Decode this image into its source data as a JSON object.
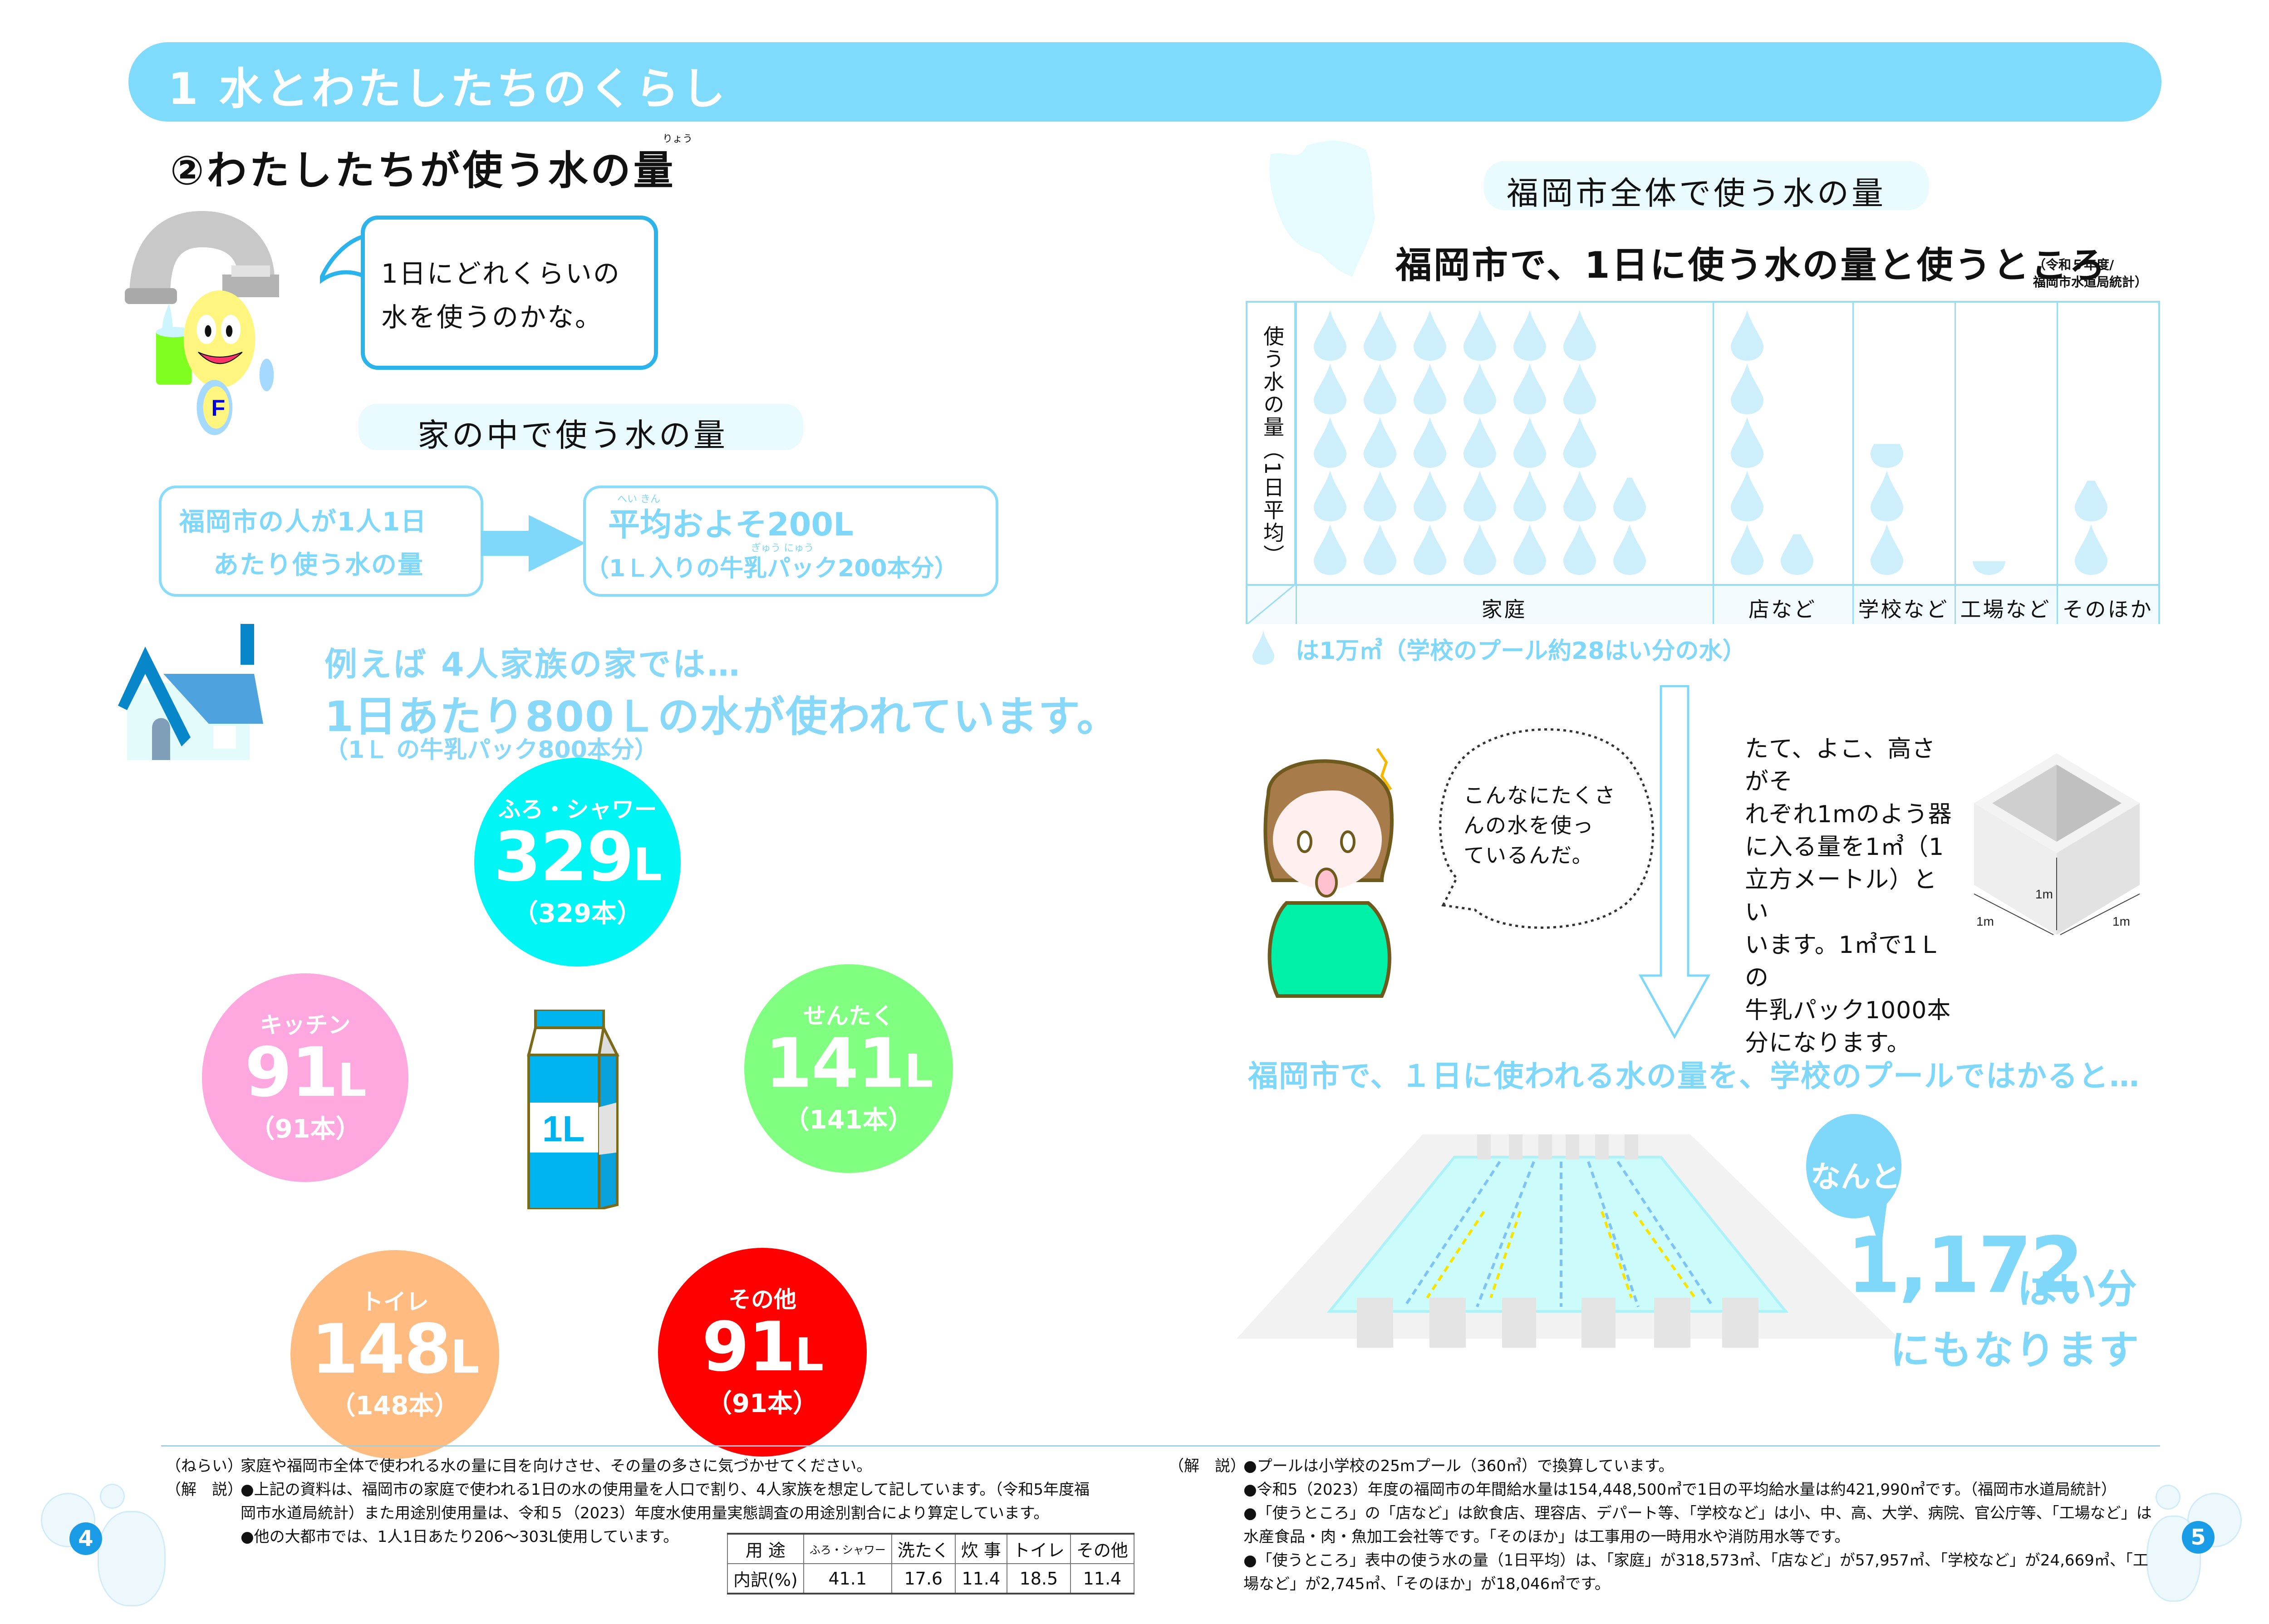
{
  "header": {
    "title": "1 水とわたしたちのくらし"
  },
  "left_page": {
    "section_title": "②わたしたちが使う水の量",
    "section_title_ruby": "りょう",
    "mascot_speech": "1日にどれくらいの\n水を使うのかな。",
    "subheading": "家の中で使う水の量",
    "per_person_box": {
      "line1": "福岡市の人が1人1日",
      "line2": "あたり使う水の量"
    },
    "average_box": {
      "line1": "平均およそ200L",
      "line1_ruby": "へい きん",
      "line2": "（1Ｌ入りの牛乳パック200本分）",
      "line2_ruby": "ぎゅう にゅう"
    },
    "example": {
      "line1": "例えば 4人家族の家では…",
      "line2": "1日あたり800Ｌの水が使われています。",
      "line3": "（1Ｌ の牛乳パック800本分）"
    },
    "carton_label": "1L",
    "usage_circles": [
      {
        "label": "ふろ・シャワー",
        "value": "329",
        "unit": "L",
        "packs": "（329本）",
        "color": "#00f5f5"
      },
      {
        "label": "キッチン",
        "value": "91",
        "unit": "L",
        "packs": "（91本）",
        "color": "#ffa8e0"
      },
      {
        "label": "せんたく",
        "value": "141",
        "unit": "L",
        "packs": "（141本）",
        "color": "#80ff80"
      },
      {
        "label": "トイレ",
        "value": "148",
        "unit": "L",
        "packs": "（148本）",
        "color": "#ffbb80"
      },
      {
        "label": "その他",
        "value": "91",
        "unit": "L",
        "packs": "（91本）",
        "color": "#ff0000"
      }
    ],
    "page_number": "4"
  },
  "right_page": {
    "subheading": "福岡市全体で使う水の量",
    "chart_title": "福岡市で、1日に使う水の量と使うところ",
    "chart_source_line1": "（令和５年度/",
    "chart_source_line2": "福岡市水道局統計）",
    "y_axis_label": "使う水の量（1日平均）",
    "legend": "は1万㎥（学校のプール約28はい分の水）",
    "girl_speech": "こんなにたくさ\nんの水を使っ\nているんだ。",
    "cube_explanation": "たて、よこ、高さがそ\nれぞれ1mのよう器\nに入る量を1㎥（1\n立方メートル）とい\nいます。1㎥で1Ｌの\n牛乳パック1000本\n分になります。",
    "cube_labels": {
      "height": "1m",
      "left": "1m",
      "right": "1m"
    },
    "pool_caption": "福岡市で、１日に使われる水の量を、学校のプールではかると…",
    "nanto": "なんと",
    "pool_count": "1,172",
    "pool_unit": "はい分",
    "pool_suffix": "にもなります",
    "page_number": "5"
  },
  "chart_data": {
    "type": "bar",
    "title": "福岡市で、1日に使う水の量と使うところ",
    "subtitle": "（令和５年度/福岡市水道局統計）",
    "xlabel": "",
    "ylabel": "使う水の量（1日平均）",
    "unit": "万㎥ (1 drop = 1万㎥)",
    "categories": [
      "家庭",
      "店など",
      "学校など",
      "工場など",
      "そのほか"
    ],
    "values": [
      31.86,
      5.8,
      2.47,
      0.27,
      1.8
    ],
    "values_m3": [
      318573,
      57957,
      24669,
      2745,
      18046
    ],
    "grid": false,
    "legend": "💧は1万㎥（学校のプール約28はい分の水）"
  },
  "footer": {
    "left": {
      "aim_label": "（ねらい）",
      "aim_text": "家庭や福岡市全体で使われる水の量に目を向けさせ、その量の多さに気づかせてください。",
      "explain_label": "（解　説）",
      "bullets": [
        "●上記の資料は、福岡市の家庭で使われる1日の水の使用量を人口で割り、4人家族を想定して記しています。（令和5年度福岡市水道局統計）また用途別使用量は、令和５（2023）年度水使用量実態調査の用途別割合により算定しています。",
        "●他の大都市では、1人1日あたり206〜303L使用しています。"
      ],
      "table": {
        "headers": [
          "用 途",
          "ふろ・シャワー",
          "洗たく",
          "炊 事",
          "トイレ",
          "その他"
        ],
        "row": [
          "内訳(%)",
          "41.1",
          "17.6",
          "11.4",
          "18.5",
          "11.4"
        ]
      }
    },
    "right": {
      "explain_label": "（解　説）",
      "bullets": [
        "●プールは小学校の25mプール（360㎥）で換算しています。",
        "●令和5（2023）年度の福岡市の年間給水量は154,448,500㎥で1日の平均給水量は約421,990㎥です。（福岡市水道局統計）",
        "●「使うところ」の「店など」は飲食店、理容店、デパート等、「学校など」は小、中、高、大学、病院、官公庁等、「工場など」は水産食品・肉・魚加工会社等です。「そのほか」は工事用の一時用水や消防用水等です。",
        "●「使うところ」表中の使う水の量（1日平均）は、「家庭」が318,573㎥、「店など」が57,957㎥、「学校など」が24,669㎥、「工場など」が2,745㎥、「そのほか」が18,046㎥です。"
      ]
    }
  },
  "colors": {
    "header_blue": "#7fdbfb",
    "accent_text": "#7fd8fa",
    "drop": "#cdeffb",
    "page_num": "#1a9be6"
  }
}
